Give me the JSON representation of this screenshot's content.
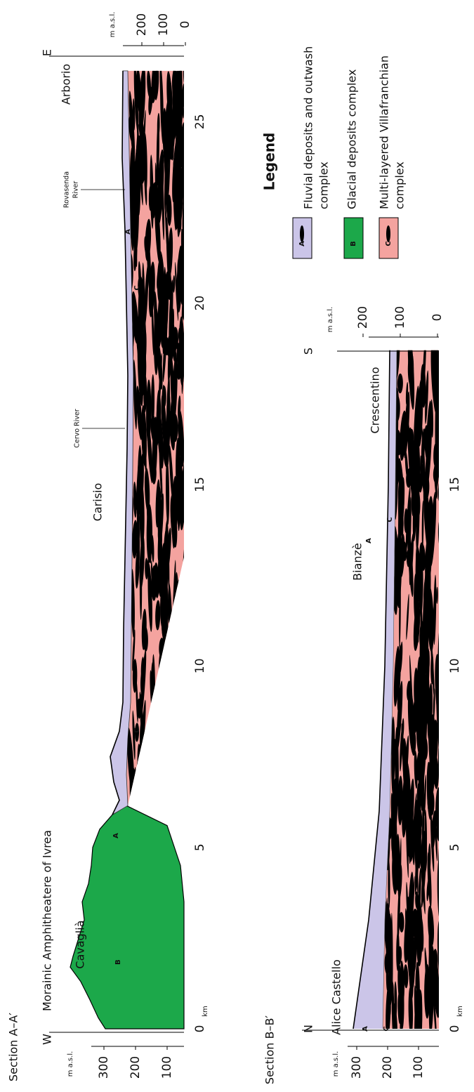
{
  "section_a": {
    "title": "Section A–A′",
    "west": "W",
    "east": "E",
    "area": "Morainic Amphitheatere of Ivrea",
    "places": [
      "Cavaglià",
      "Carisio",
      "Arborio"
    ],
    "rivers": [
      [
        "Cervo River"
      ],
      [
        "Rovasenda",
        "River"
      ]
    ],
    "units": [
      "B",
      "A",
      "C",
      "C",
      "A"
    ],
    "left_axis": {
      "unit": "m a.s.l.",
      "ticks": [
        300,
        200,
        100
      ]
    },
    "right_axis": {
      "unit": "m a.s.l.",
      "ticks": [
        200,
        100,
        0
      ]
    },
    "km_ticks": [
      0,
      5,
      10,
      15,
      20,
      25
    ],
    "km_unit": "km"
  },
  "section_b": {
    "title": "Section B–B′",
    "north": "N",
    "south": "S",
    "places": [
      "Alice Castello",
      "Bianzè",
      "Crescentino"
    ],
    "units": [
      "A",
      "C",
      "A",
      "C"
    ],
    "left_axis": {
      "unit": "m a.s.l.",
      "ticks": [
        300,
        200,
        100
      ]
    },
    "right_axis": {
      "unit": "m a.s.l.",
      "ticks": [
        200,
        100,
        0
      ]
    },
    "km_ticks": [
      0,
      5,
      10,
      15
    ],
    "km_unit": "km"
  },
  "legend": {
    "title": "Legend",
    "items": [
      {
        "code": "A",
        "label_lines": [
          "Fluvial deposits and outwash",
          "complex"
        ]
      },
      {
        "code": "B",
        "label_lines": [
          "Glacial deposits complex"
        ]
      },
      {
        "code": "C",
        "label_lines": [
          "Multi-layered Villafranchian",
          "complex"
        ]
      }
    ]
  }
}
